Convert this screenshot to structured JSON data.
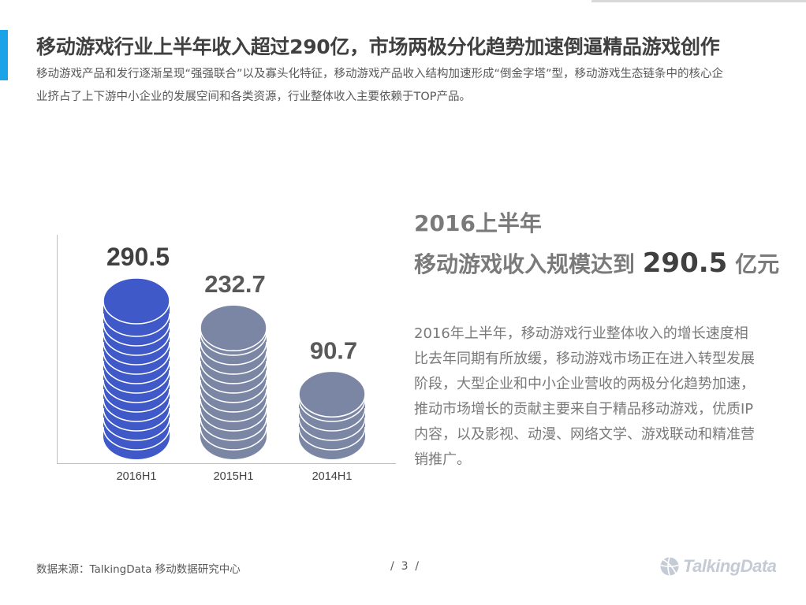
{
  "header": {
    "title": "移动游戏行业上半年收入超过290亿，市场两极分化趋势加速倒逼精品游戏创作",
    "subtitle": "移动游戏产品和发行逐渐呈现“强强联合”以及寡头化特征，移动游戏产品收入结构加速形成“倒金字塔”型，移动游戏生态链条中的核心企业挤占了上下游中小企业的发展空间和各类资源，行业整体收入主要依赖于TOP产品。"
  },
  "highlight": {
    "year": "2016上半年",
    "prefix": "移动游戏收入规模达到",
    "value": "290.5",
    "suffix": "亿元"
  },
  "description": "2016年上半年，移动游戏行业整体收入的增长速度相比去年同期有所放缓，移动游戏市场正在进入转型发展阶段，大型企业和中小企业营收的两极分化趋势加速，推动市场增长的贡献主要来自于精品移动游戏，优质IP内容，以及影视、动漫、网络文学、游戏联动和精准营销推广。",
  "chart_data": {
    "type": "bar",
    "style": "coin-stacks",
    "categories": [
      "2016H1",
      "2015H1",
      "2014H1"
    ],
    "values": [
      290.5,
      232.7,
      90.7
    ],
    "value_labels": [
      "290.5",
      "232.7",
      "90.7"
    ],
    "ylim": [
      0,
      290.5
    ],
    "colors": [
      "#3f59c9",
      "#7b86a5",
      "#7b86a5"
    ],
    "grid": false,
    "legend": "none"
  },
  "footer": {
    "source": "数据来源：TalkingData 移动数据研究中心",
    "page": "/  3  /",
    "logo_text": "TalkingData"
  }
}
